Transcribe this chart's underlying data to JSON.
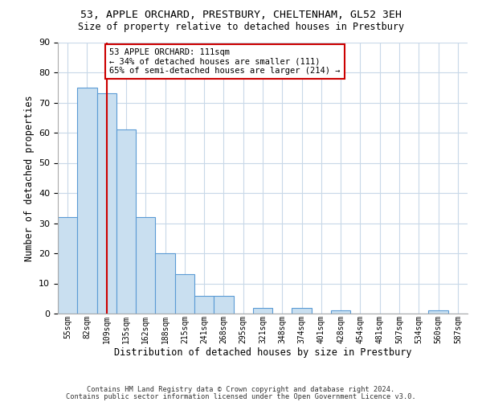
{
  "title": "53, APPLE ORCHARD, PRESTBURY, CHELTENHAM, GL52 3EH",
  "subtitle": "Size of property relative to detached houses in Prestbury",
  "xlabel": "Distribution of detached houses by size in Prestbury",
  "ylabel": "Number of detached properties",
  "bin_labels": [
    "55sqm",
    "82sqm",
    "109sqm",
    "135sqm",
    "162sqm",
    "188sqm",
    "215sqm",
    "241sqm",
    "268sqm",
    "295sqm",
    "321sqm",
    "348sqm",
    "374sqm",
    "401sqm",
    "428sqm",
    "454sqm",
    "481sqm",
    "507sqm",
    "534sqm",
    "560sqm",
    "587sqm"
  ],
  "bar_heights": [
    32,
    75,
    73,
    61,
    32,
    20,
    13,
    6,
    6,
    0,
    2,
    0,
    2,
    0,
    1,
    0,
    0,
    0,
    0,
    1,
    0
  ],
  "bar_color": "#c9dff0",
  "bar_edge_color": "#5b9bd5",
  "property_line_x": 2.5,
  "property_line_color": "#cc0000",
  "annotation_text": "53 APPLE ORCHARD: 111sqm\n← 34% of detached houses are smaller (111)\n65% of semi-detached houses are larger (214) →",
  "annotation_box_color": "#ffffff",
  "annotation_box_edge": "#cc0000",
  "ylim": [
    0,
    90
  ],
  "yticks": [
    0,
    10,
    20,
    30,
    40,
    50,
    60,
    70,
    80,
    90
  ],
  "footer1": "Contains HM Land Registry data © Crown copyright and database right 2024.",
  "footer2": "Contains public sector information licensed under the Open Government Licence v3.0.",
  "bg_color": "#ffffff",
  "grid_color": "#c8d8e8",
  "title_fontsize": 9.5,
  "subtitle_fontsize": 8.5
}
